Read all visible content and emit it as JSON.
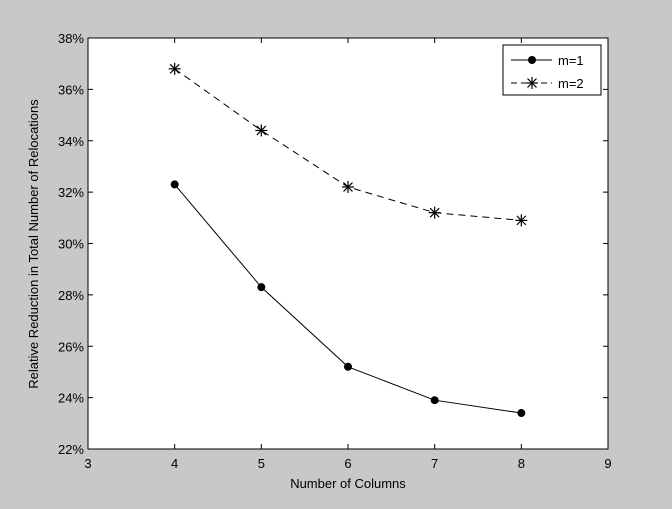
{
  "chart_data": {
    "type": "line",
    "title": "",
    "xlabel": "Number of Columns",
    "ylabel": "Relative Reduction in Total Number of Relocations",
    "xlim": [
      3,
      9
    ],
    "ylim": [
      22,
      38
    ],
    "xticks": [
      3,
      4,
      5,
      6,
      7,
      8,
      9
    ],
    "yticks": [
      22,
      24,
      26,
      28,
      30,
      32,
      34,
      36,
      38
    ],
    "ytick_suffix": "%",
    "grid": false,
    "legend_position": "top-right",
    "series": [
      {
        "name": "m=1",
        "marker": "filled-circle",
        "line_style": "solid",
        "color": "#000000",
        "x": [
          4,
          5,
          6,
          7,
          8
        ],
        "y": [
          32.3,
          28.3,
          25.2,
          23.9,
          23.4
        ]
      },
      {
        "name": "m=2",
        "marker": "asterisk",
        "line_style": "dashed",
        "color": "#000000",
        "x": [
          4,
          5,
          6,
          7,
          8
        ],
        "y": [
          36.8,
          34.4,
          32.2,
          31.2,
          30.9
        ]
      }
    ]
  }
}
